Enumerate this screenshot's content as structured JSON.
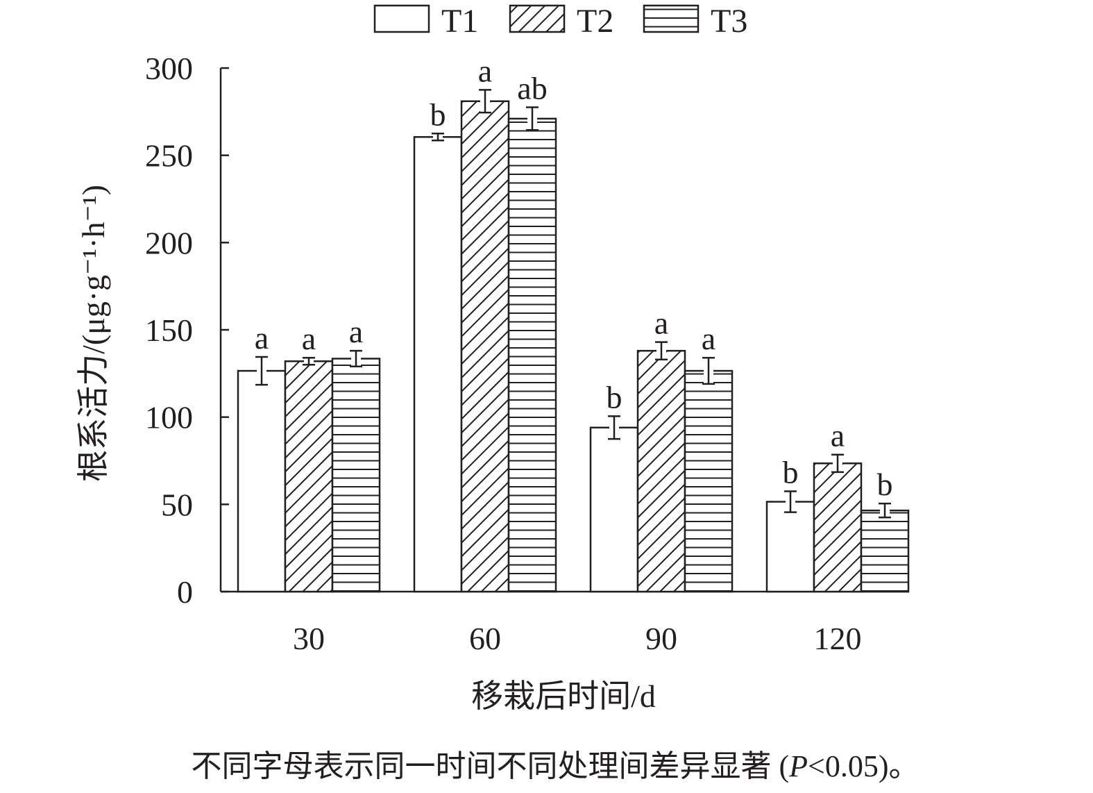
{
  "chart_data": {
    "type": "bar",
    "xlabel": "移栽后时间/d",
    "ylabel": "根系活力/(μg·g⁻¹·h⁻¹)",
    "ylim": [
      0,
      300
    ],
    "yticks": [
      "0",
      "50",
      "100",
      "150",
      "200",
      "250",
      "300"
    ],
    "categories": [
      "30",
      "60",
      "90",
      "120"
    ],
    "legend_position": "top-center",
    "grid": false,
    "series": [
      {
        "name": "T1",
        "pattern": "none",
        "values": [
          126.5,
          260.5,
          94,
          51.5
        ],
        "errors": [
          8,
          2,
          6.5,
          6
        ],
        "letters": [
          "a",
          "b",
          "b",
          "b"
        ]
      },
      {
        "name": "T2",
        "pattern": "diagonal",
        "values": [
          132,
          281,
          138,
          73.5
        ],
        "errors": [
          2,
          6.5,
          5,
          5
        ],
        "letters": [
          "a",
          "a",
          "a",
          "a"
        ]
      },
      {
        "name": "T3",
        "pattern": "horizontal",
        "values": [
          133.5,
          271,
          126.5,
          46.5
        ],
        "errors": [
          4.5,
          6.5,
          7.5,
          4
        ],
        "letters": [
          "a",
          "ab",
          "a",
          "b"
        ]
      }
    ]
  },
  "footnote": {
    "text": "不同字母表示同一时间不同处理间差异显著 (",
    "p": "P",
    "rest": "<0.05)。"
  }
}
